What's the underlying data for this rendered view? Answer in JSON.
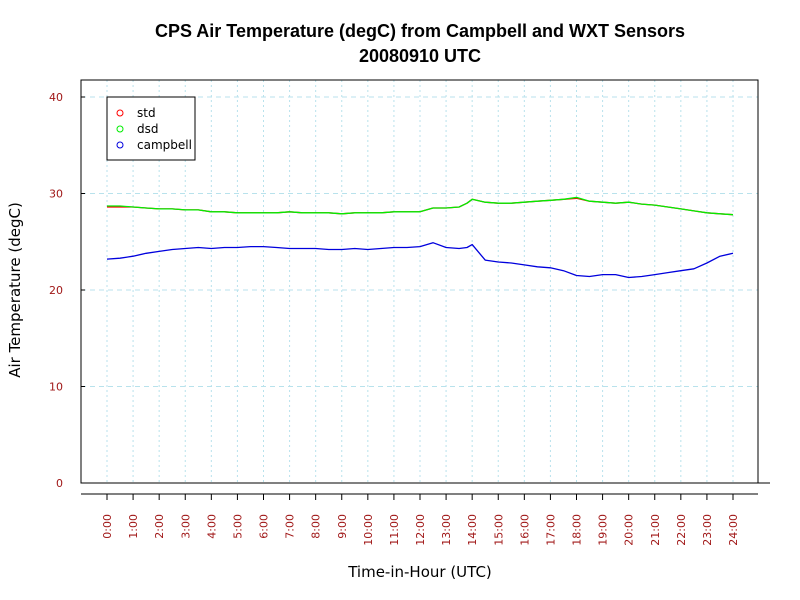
{
  "chart_data": {
    "type": "line",
    "title": "CPS Air Temperature (degC) from Campbell and WXT Sensors",
    "subtitle": "20080910  UTC",
    "xlabel": "Time-in-Hour (UTC)",
    "ylabel": "Air Temperature (degC)",
    "xlim": [
      0,
      24
    ],
    "ylim": [
      0,
      40
    ],
    "grid": true,
    "legend_position": "top-left",
    "y_ticks": [
      "0",
      "10",
      "20",
      "30",
      "40"
    ],
    "x_ticks": [
      "0:00",
      "1:00",
      "2:00",
      "3:00",
      "4:00",
      "5:00",
      "6:00",
      "7:00",
      "8:00",
      "9:00",
      "10:00",
      "11:00",
      "12:00",
      "13:00",
      "14:00",
      "15:00",
      "16:00",
      "17:00",
      "18:00",
      "19:00",
      "20:00",
      "21:00",
      "22:00",
      "23:00",
      "24:00"
    ],
    "x": [
      0,
      0.5,
      1,
      1.5,
      2,
      2.5,
      3,
      3.5,
      4,
      4.5,
      5,
      5.5,
      6,
      6.5,
      7,
      7.5,
      8,
      8.5,
      9,
      9.5,
      10,
      10.5,
      11,
      11.5,
      12,
      12.5,
      13,
      13.5,
      13.8,
      14,
      14.5,
      15,
      15.5,
      16,
      16.5,
      17,
      17.5,
      18,
      18.5,
      19,
      19.5,
      20,
      20.5,
      21,
      21.5,
      22,
      22.5,
      23,
      23.5,
      24
    ],
    "series": [
      {
        "name": "std",
        "color": "#ff0000",
        "values": [
          28.6,
          28.6,
          28.6,
          28.5,
          28.4,
          28.4,
          28.3,
          28.3,
          28.1,
          28.1,
          28.0,
          28.0,
          28.0,
          28.0,
          28.1,
          28.0,
          28.0,
          28.0,
          27.9,
          28.0,
          28.0,
          28.0,
          28.1,
          28.1,
          28.1,
          28.5,
          28.5,
          28.6,
          29.0,
          29.4,
          29.1,
          29.0,
          29.0,
          29.1,
          29.2,
          29.3,
          29.4,
          29.5,
          29.2,
          29.1,
          29.0,
          29.1,
          28.9,
          28.8,
          28.6,
          28.4,
          28.2,
          28.0,
          27.9,
          27.8
        ]
      },
      {
        "name": "dsd",
        "color": "#00ee00",
        "values": [
          28.7,
          28.7,
          28.6,
          28.5,
          28.4,
          28.4,
          28.3,
          28.3,
          28.1,
          28.1,
          28.0,
          28.0,
          28.0,
          28.0,
          28.1,
          28.0,
          28.0,
          28.0,
          27.9,
          28.0,
          28.0,
          28.0,
          28.1,
          28.1,
          28.1,
          28.5,
          28.5,
          28.6,
          29.0,
          29.4,
          29.1,
          29.0,
          29.0,
          29.1,
          29.2,
          29.3,
          29.4,
          29.6,
          29.2,
          29.1,
          29.0,
          29.1,
          28.9,
          28.8,
          28.6,
          28.4,
          28.2,
          28.0,
          27.9,
          27.8
        ]
      },
      {
        "name": "campbell",
        "color": "#0000dd",
        "values": [
          23.2,
          23.3,
          23.5,
          23.8,
          24.0,
          24.2,
          24.3,
          24.4,
          24.3,
          24.4,
          24.4,
          24.5,
          24.5,
          24.4,
          24.3,
          24.3,
          24.3,
          24.2,
          24.2,
          24.3,
          24.2,
          24.3,
          24.4,
          24.4,
          24.5,
          24.9,
          24.4,
          24.3,
          24.4,
          24.7,
          23.1,
          22.9,
          22.8,
          22.6,
          22.4,
          22.3,
          22.0,
          21.5,
          21.4,
          21.6,
          21.6,
          21.3,
          21.4,
          21.6,
          21.8,
          22.0,
          22.2,
          22.8,
          23.5,
          23.8
        ]
      }
    ]
  }
}
